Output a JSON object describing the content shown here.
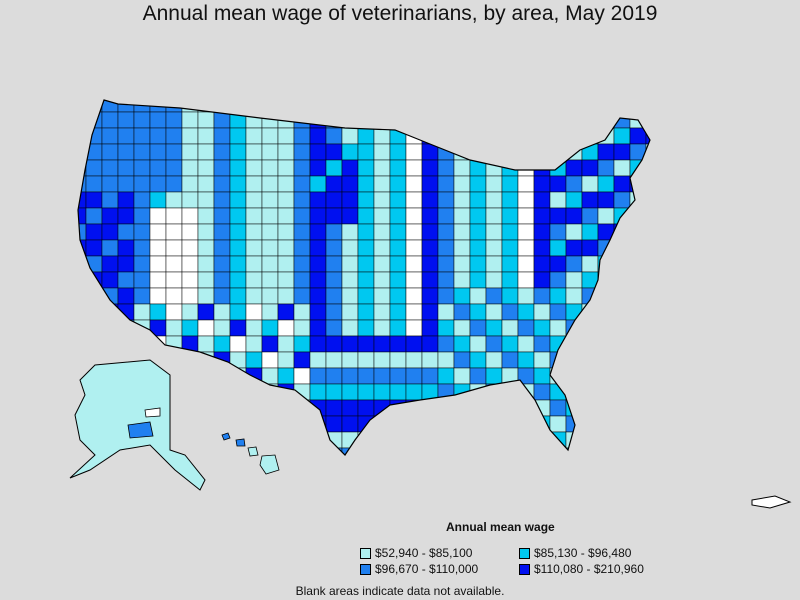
{
  "title": "Annual mean wage of veterinarians, by area, May 2019",
  "legend": {
    "title": "Annual mean wage",
    "items": [
      {
        "label": "$52,940 - $85,100",
        "color": "#b0f0f0"
      },
      {
        "label": "$85,130 - $96,480",
        "color": "#00c8f0"
      },
      {
        "label": "$96,670 - $110,000",
        "color": "#2080f0"
      },
      {
        "label": "$110,080 - $210,960",
        "color": "#0010f0"
      }
    ]
  },
  "note": "Blank areas indicate data not available.",
  "colors": {
    "background": "#dcdcdc",
    "no_data": "#ffffff",
    "border": "#000000"
  }
}
